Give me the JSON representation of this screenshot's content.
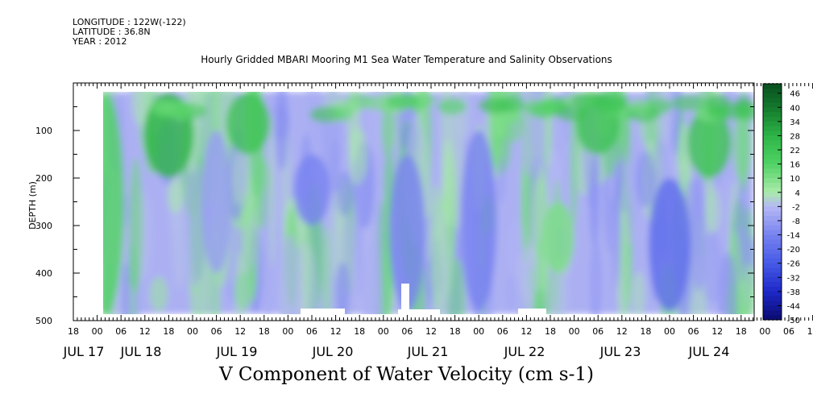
{
  "meta": {
    "longitude": "LONGITUDE : 122W(-122)",
    "latitude": "LATITUDE : 36.8N",
    "year": "YEAR : 2012"
  },
  "chart_data": {
    "type": "heatmap",
    "title": "Hourly Gridded MBARI Mooring M1 Sea Water Temperature and Salinity Observations",
    "xlabel": "V Component of Water Velocity (cm s-1)",
    "ylabel": "DEPTH (m)",
    "hour_ticks": [
      "18",
      "00",
      "06",
      "12",
      "18",
      "00",
      "06",
      "12",
      "18",
      "00",
      "06",
      "12",
      "18",
      "00",
      "06",
      "12",
      "18",
      "00",
      "06",
      "12",
      "18",
      "00",
      "06",
      "12",
      "18",
      "00",
      "06",
      "12",
      "18",
      "00",
      "06",
      "12",
      "18"
    ],
    "date_labels": [
      "JUL 17",
      "JUL 18",
      "JUL 19",
      "JUL 20",
      "JUL 21",
      "JUL 22",
      "JUL 23",
      "JUL 24"
    ],
    "y_ticks": [
      100,
      200,
      300,
      400,
      500
    ],
    "ylim": [
      500,
      0
    ],
    "colorbar_ticks": [
      46,
      40,
      34,
      28,
      22,
      16,
      10,
      4,
      -2,
      -8,
      -14,
      -20,
      -26,
      -32,
      -38,
      -44,
      -50
    ],
    "clim": [
      -50,
      50
    ],
    "colors": {
      "positive_strong": "#0b5a1f",
      "positive": "#2ec04a",
      "positive_weak": "#9ee89c",
      "negative_weak": "#b6b9f4",
      "negative": "#7a82f0",
      "negative_strong": "#0a0a6e"
    },
    "v_component_bands": [
      {
        "time": "JUL 17 02",
        "depth_range": [
          20,
          490
        ],
        "v_cm_s": 16
      },
      {
        "time": "JUL 17 18",
        "depth_range": [
          20,
          200
        ],
        "v_cm_s": 28
      },
      {
        "time": "JUL 18 06",
        "depth_range": [
          100,
          400
        ],
        "v_cm_s": -8
      },
      {
        "time": "JUL 18 14",
        "depth_range": [
          20,
          150
        ],
        "v_cm_s": 22
      },
      {
        "time": "JUL 19 06",
        "depth_range": [
          150,
          300
        ],
        "v_cm_s": -14
      },
      {
        "time": "JUL 20 06",
        "depth_range": [
          150,
          480
        ],
        "v_cm_s": -14
      },
      {
        "time": "JUL 21 00",
        "depth_range": [
          100,
          480
        ],
        "v_cm_s": -14
      },
      {
        "time": "JUL 21 20",
        "depth_range": [
          250,
          400
        ],
        "v_cm_s": 10
      },
      {
        "time": "JUL 22 06",
        "depth_range": [
          20,
          150
        ],
        "v_cm_s": 22
      },
      {
        "time": "JUL 23 00",
        "depth_range": [
          200,
          480
        ],
        "v_cm_s": -20
      },
      {
        "time": "JUL 23 10",
        "depth_range": [
          50,
          200
        ],
        "v_cm_s": 22
      },
      {
        "time": "JUL 24 08",
        "depth_range": [
          20,
          200
        ],
        "v_cm_s": 28
      },
      {
        "time": "JUL 24 18",
        "depth_range": [
          200,
          480
        ],
        "v_cm_s": -20
      }
    ]
  }
}
